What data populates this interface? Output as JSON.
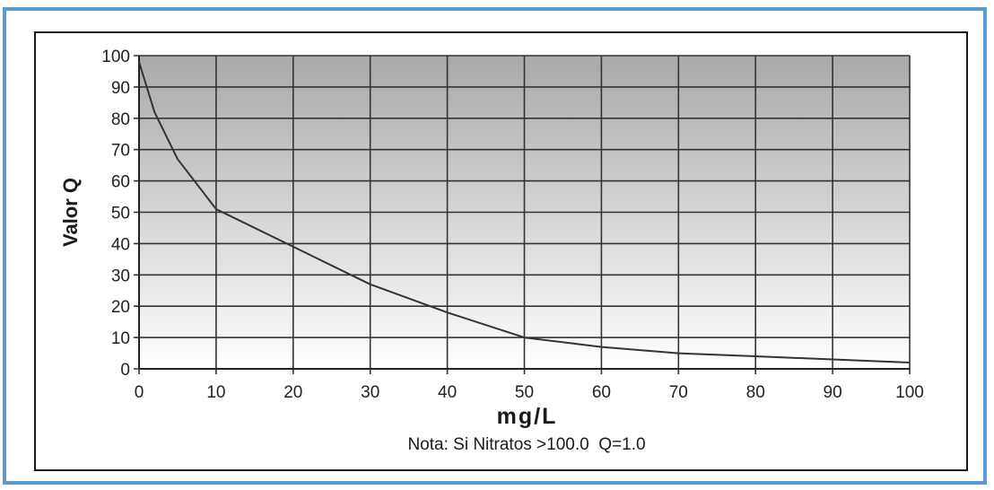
{
  "chart_data": {
    "type": "line",
    "title": "",
    "xlabel": "mg/L",
    "ylabel": "Valor Q",
    "note": "Nota: Si Nitratos >100.0  Q=1.0",
    "xlim": [
      0,
      100
    ],
    "ylim": [
      0,
      100
    ],
    "x_ticks": [
      "0",
      "10",
      "20",
      "30",
      "40",
      "50",
      "60",
      "70",
      "80",
      "90",
      "100"
    ],
    "y_ticks": [
      "0",
      "10",
      "20",
      "30",
      "40",
      "50",
      "60",
      "70",
      "80",
      "90",
      "100"
    ],
    "grid": true,
    "series": [
      {
        "x": [
          0,
          2,
          5,
          10,
          20,
          30,
          40,
          50,
          60,
          70,
          80,
          90,
          100
        ],
        "y": [
          98,
          82,
          67,
          51,
          39,
          27,
          18,
          10,
          7,
          5,
          4,
          3,
          2
        ]
      }
    ],
    "colors": {
      "line": "#333333",
      "grid": "#333333",
      "plot_top": "#a9a9a9",
      "plot_bottom": "#ffffff",
      "frame_accent": "#5b9bd5"
    }
  }
}
